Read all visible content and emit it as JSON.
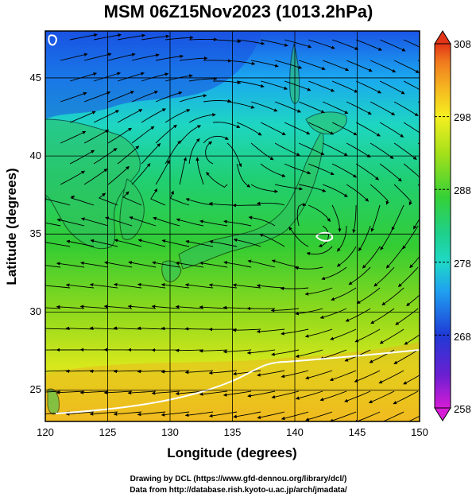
{
  "title": "MSM 06Z15Nov2023 (1013.2hPa)",
  "map": {
    "xlabel": "Longitude (degrees)",
    "ylabel": "Latitude  (degrees)",
    "lon_range": [
      120,
      150
    ],
    "lat_range": [
      23,
      48
    ],
    "lon_ticks": [
      "120",
      "125",
      "130",
      "135",
      "140",
      "145",
      "150"
    ],
    "lat_ticks": [
      "25",
      "30",
      "35",
      "40",
      "45"
    ],
    "grid": true,
    "layers": [
      "temperature shading",
      "streamlines",
      "coastlines",
      "white contour"
    ]
  },
  "colorbar": {
    "ticks": [
      "308",
      "298",
      "288",
      "278",
      "268",
      "258"
    ],
    "range": [
      258,
      308
    ],
    "colors": [
      "#d61cd6",
      "#6b1fd1",
      "#1f3ad6",
      "#1fa0f0",
      "#1fd9c8",
      "#1fd08a",
      "#36d136",
      "#a6e01a",
      "#f5ef20",
      "#f5b520",
      "#f07a1e",
      "#e33518"
    ]
  },
  "credits": {
    "line1": "Drawing by DCL (https://www.gfd-dennou.org/library/dcl/)",
    "line2": "Data from http://database.rish.kyoto-u.ac.jp/arch/jmadata/"
  }
}
